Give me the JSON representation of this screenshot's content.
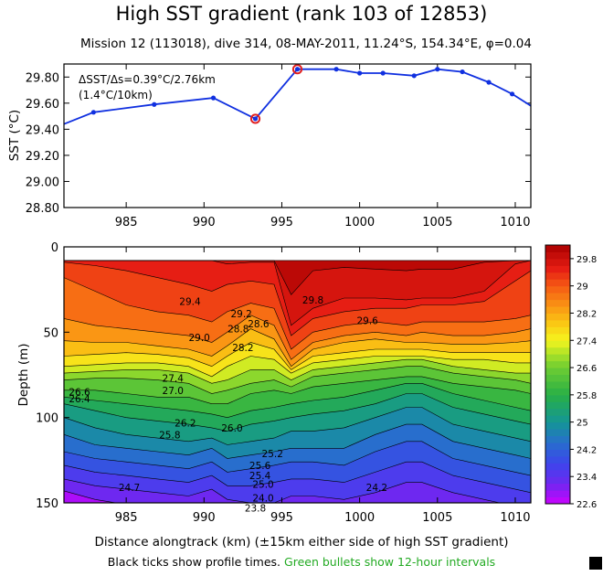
{
  "title": "High SST gradient (rank 103 of 12853)",
  "subtitle": "Mission 12 (113018),  dive 314,  08-MAY-2011,  11.24°S, 154.34°E,  φ=0.04",
  "footer": {
    "black_text": "Black ticks show profile times.",
    "green_text": "Green bullets show 12-hour intervals",
    "green_color": "#22aa22"
  },
  "colors": {
    "sst_line": "#1030e0",
    "highlight_ring": "#e02020"
  },
  "chart_data": [
    {
      "type": "line",
      "ylabel": "SST (°C)",
      "xlim": [
        981,
        1011
      ],
      "ylim": [
        28.8,
        29.9
      ],
      "x_ticks": [
        985,
        990,
        995,
        1000,
        1005,
        1010
      ],
      "y_ticks": [
        28.8,
        29.0,
        29.2,
        29.4,
        29.6,
        29.8
      ],
      "y_tick_labels": [
        "28.80",
        "29.00",
        "29.20",
        "29.40",
        "29.60",
        "29.80"
      ],
      "annotation_line1": "ΔSST/Δs=0.39°C/2.76km",
      "annotation_line2": "(1.4°C/10km)",
      "series": [
        {
          "x": [
            981,
            982.9,
            986.8,
            990.6,
            993.3,
            996.0,
            998.5,
            1000.0,
            1001.5,
            1003.5,
            1005.0,
            1006.6,
            1008.3,
            1009.8,
            1011
          ],
          "y": [
            29.44,
            29.53,
            29.59,
            29.64,
            29.48,
            29.86,
            29.86,
            29.83,
            29.83,
            29.81,
            29.86,
            29.84,
            29.76,
            29.67,
            29.58
          ],
          "markers": [
            false,
            true,
            true,
            true,
            true,
            true,
            true,
            true,
            true,
            true,
            true,
            true,
            true,
            true,
            false
          ]
        }
      ],
      "highlight_x": [
        993.3,
        996.0
      ]
    },
    {
      "type": "heatmap",
      "xlabel": "Distance alongtrack (km) (±15km either side of high SST gradient)",
      "ylabel": "Depth (m)",
      "xlim": [
        981,
        1011
      ],
      "ylim": [
        150,
        0
      ],
      "x_ticks": [
        985,
        990,
        995,
        1000,
        1005,
        1010
      ],
      "y_ticks": [
        0,
        50,
        100,
        150
      ],
      "colorbar": {
        "min": 22.6,
        "max": 30.2,
        "labels": [
          "22.6",
          "23.4",
          "24.2",
          "25",
          "25.8",
          "26.6",
          "27.4",
          "28.2",
          "29",
          "29.8"
        ]
      },
      "contour_labels": [
        "29.4",
        "29.2",
        "29.0",
        "28.8",
        "28.6",
        "28.2",
        "29.8",
        "29.6",
        "27.4",
        "27.0",
        "26.6",
        "26.4",
        "26.2",
        "26.0",
        "25.8",
        "25.6",
        "25.4",
        "25.2",
        "25.0",
        "24.7",
        "24.2",
        "24.0",
        "23.8"
      ]
    }
  ]
}
